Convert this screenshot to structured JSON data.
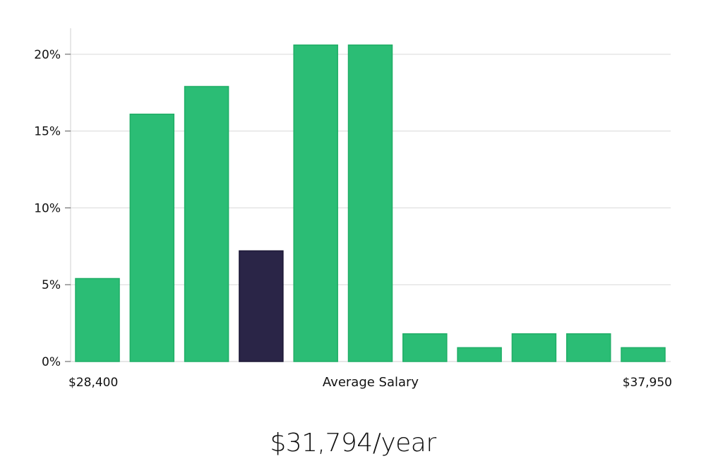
{
  "chart_data": {
    "type": "bar",
    "title": "",
    "xlabel": "Average Salary",
    "ylabel": "",
    "x_range_labels": {
      "min": "$28,400",
      "max": "$37,950"
    },
    "y_tick_labels": [
      "0%",
      "5%",
      "10%",
      "15%",
      "20%"
    ],
    "y_tick_values": [
      0,
      5,
      10,
      15,
      20
    ],
    "ylim": [
      0,
      21.6
    ],
    "grid": true,
    "values": [
      5.4,
      16.1,
      17.9,
      7.2,
      20.6,
      20.6,
      1.8,
      0.9,
      1.8,
      1.8,
      0.9
    ],
    "highlight_index": 3,
    "colors": {
      "bar": "#2bbd75",
      "bar_stroke": "#1fae66",
      "highlight": "#2a2547",
      "grid": "#d9d9d9",
      "axis": "#cfcfcf"
    }
  },
  "salary": {
    "average": "$31,794/year"
  }
}
